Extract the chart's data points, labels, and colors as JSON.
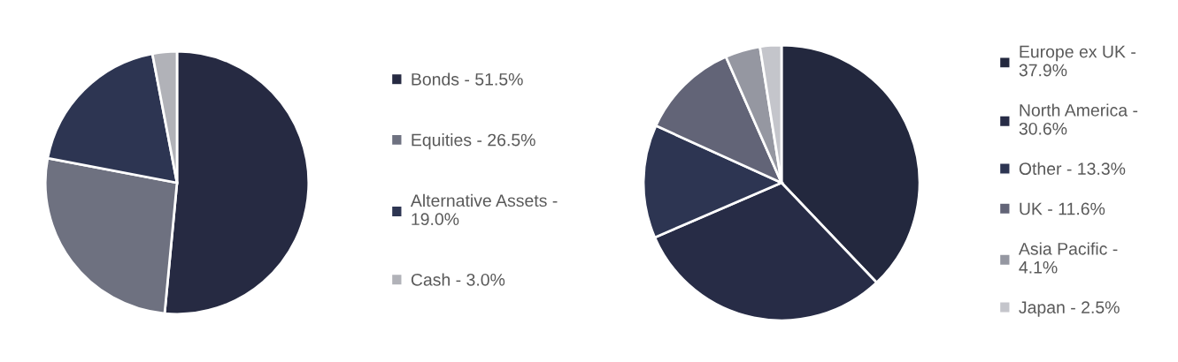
{
  "chart_data": [
    {
      "type": "pie",
      "categories": [
        "Bonds - 51.5%",
        "Equities - 26.5%",
        "Alternative Assets - 19.0%",
        "Cash - 3.0%"
      ],
      "values": [
        51.5,
        26.5,
        19.0,
        3.0
      ],
      "colors": [
        "#262a42",
        "#6e7180",
        "#2d3552",
        "#b1b2b8"
      ],
      "legend": "right"
    },
    {
      "type": "pie",
      "categories": [
        "Europe ex UK - 37.9%",
        "North America - 30.6%",
        "Other - 13.3%",
        "UK - 11.6%",
        "Asia Pacific - 4.1%",
        "Japan - 2.5%"
      ],
      "values": [
        37.9,
        30.6,
        13.3,
        11.6,
        4.1,
        2.5
      ],
      "colors": [
        "#23283e",
        "#272c46",
        "#2d3552",
        "#626477",
        "#9597a1",
        "#c4c5cb"
      ],
      "legend": "right"
    }
  ]
}
